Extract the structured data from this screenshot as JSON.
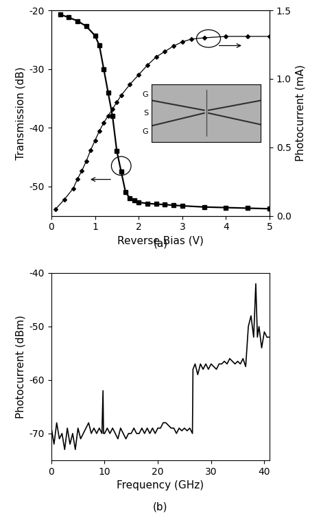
{
  "chart_data": [
    {
      "type": "line",
      "caption": "(a)",
      "x_label": "Reverse Bias (V)",
      "y_label": "Transmission (dB)",
      "y2_label": "Photocurrent (mA)",
      "xlim": [
        0,
        5
      ],
      "xticks": [
        0,
        1,
        2,
        3,
        4,
        5
      ],
      "ylim": [
        -55,
        -20
      ],
      "yticks": [
        -50,
        -40,
        -30,
        -20
      ],
      "y2lim": [
        0,
        1.5
      ],
      "y2ticks": [
        {
          "value": 0,
          "label": "0.0"
        },
        {
          "value": 0.5,
          "label": "0.5"
        },
        {
          "value": 1,
          "label": "1.0"
        },
        {
          "value": 1.5,
          "label": "1.5"
        }
      ],
      "annotations": [
        "G",
        "S",
        "G"
      ],
      "series": [
        {
          "color": "#000000",
          "marker": "square",
          "line_style": "solid",
          "x": [
            0.2,
            0.4,
            0.6,
            0.8,
            1.0,
            1.1,
            1.2,
            1.3,
            1.4,
            1.5,
            1.6,
            1.7,
            1.8,
            1.9,
            2.0,
            2.2,
            2.4,
            2.6,
            2.8,
            3.0,
            3.5,
            4.0,
            4.5,
            5.0
          ],
          "values": [
            -20.7,
            -21.2,
            -21.8,
            -22.7,
            -24.3,
            -26,
            -30,
            -34,
            -38,
            -44,
            -47.5,
            -51,
            -52,
            -52.4,
            -52.7,
            -52.9,
            -53,
            -53.1,
            -53.2,
            -53.3,
            -53.5,
            -53.6,
            -53.7,
            -53.8
          ]
        },
        {
          "color": "#000000",
          "marker": "diamond",
          "line_style": "solid",
          "axis": "y2",
          "x": [
            0.1,
            0.3,
            0.5,
            0.6,
            0.7,
            0.8,
            0.9,
            1.0,
            1.1,
            1.2,
            1.3,
            1.4,
            1.5,
            1.6,
            1.8,
            2.0,
            2.2,
            2.4,
            2.6,
            2.8,
            3.0,
            3.2,
            3.5,
            4.0,
            4.5,
            5.0
          ],
          "values": [
            0.05,
            0.12,
            0.2,
            0.27,
            0.33,
            0.4,
            0.48,
            0.55,
            0.62,
            0.68,
            0.73,
            0.78,
            0.83,
            0.88,
            0.96,
            1.03,
            1.1,
            1.16,
            1.2,
            1.24,
            1.27,
            1.29,
            1.3,
            1.31,
            1.31,
            1.31
          ]
        }
      ]
    },
    {
      "type": "line",
      "caption": "(b)",
      "x_label": "Frequency (GHz)",
      "y_label": "Photocurrent (dBm)",
      "xlim": [
        0,
        41
      ],
      "xticks": [
        0,
        10,
        20,
        30,
        40
      ],
      "ylim": [
        -75,
        -40
      ],
      "yticks": [
        -70,
        -60,
        -50,
        -40
      ],
      "series": [
        {
          "color": "#000000",
          "line_style": "solid",
          "x": [
            0,
            0.5,
            1,
            1.5,
            2,
            2.5,
            3,
            3.5,
            4,
            4.5,
            5,
            5.5,
            6,
            6.5,
            7,
            7.5,
            8,
            8.5,
            9,
            9.5,
            9.7,
            9.8,
            10,
            10.5,
            11,
            11.5,
            12,
            12.5,
            13,
            13.5,
            14,
            14.5,
            15,
            15.5,
            16,
            16.5,
            17,
            17.5,
            18,
            18.5,
            19,
            19.5,
            20,
            20.5,
            21,
            21.5,
            22,
            22.5,
            23,
            23.5,
            24,
            24.5,
            25,
            25.5,
            26,
            26.5,
            26.6,
            27,
            27.5,
            28,
            28.5,
            29,
            29.5,
            30,
            30.5,
            31,
            31.5,
            32,
            32.5,
            33,
            33.5,
            34,
            34.5,
            35,
            35.5,
            36,
            36.5,
            37,
            37.5,
            38,
            38.4,
            38.7,
            39,
            39.5,
            40,
            40.5,
            41
          ],
          "values": [
            -69,
            -72,
            -68,
            -71,
            -70,
            -73,
            -69,
            -72,
            -70,
            -73,
            -69,
            -71,
            -70,
            -69,
            -68,
            -70,
            -69,
            -70,
            -69,
            -70,
            -62,
            -70,
            -70,
            -69,
            -70,
            -69,
            -70,
            -71,
            -69,
            -70,
            -71,
            -70,
            -70,
            -69,
            -70,
            -70,
            -69,
            -70,
            -69,
            -70,
            -69,
            -70,
            -69,
            -69,
            -68,
            -68,
            -68.5,
            -69,
            -69,
            -70,
            -69,
            -69.5,
            -69,
            -69.5,
            -69,
            -70,
            -58,
            -57,
            -59,
            -57,
            -58,
            -57,
            -58,
            -57,
            -57.5,
            -58,
            -57,
            -57,
            -56.5,
            -57,
            -56,
            -56.5,
            -57,
            -56.5,
            -57,
            -56,
            -57.5,
            -50,
            -48,
            -52,
            -42,
            -52,
            -50,
            -54,
            -51,
            -52,
            -52
          ]
        }
      ]
    }
  ]
}
